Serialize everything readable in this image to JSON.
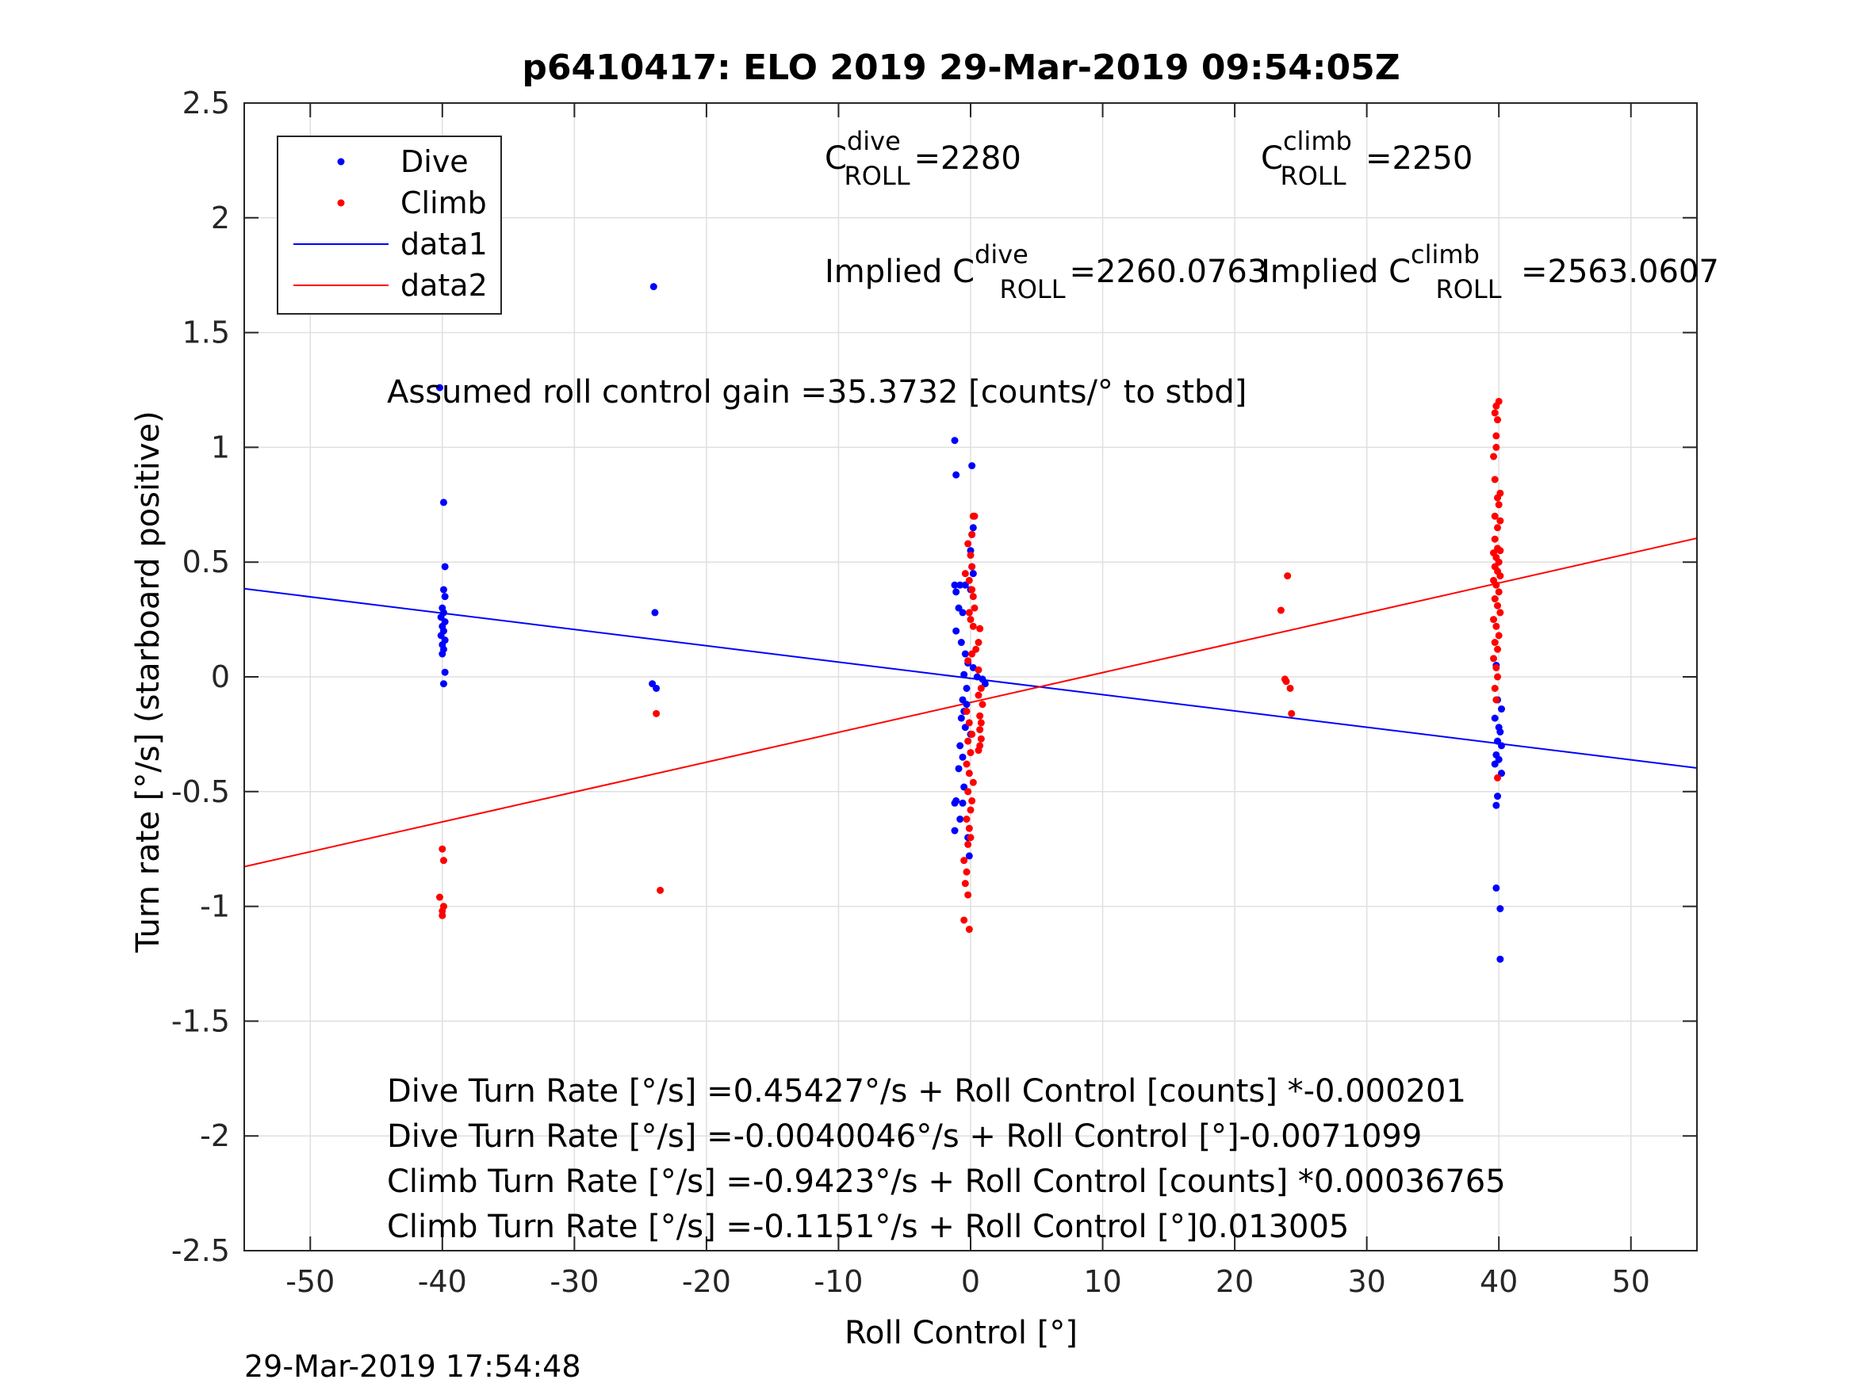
{
  "chart_data": {
    "type": "scatter",
    "title": "p6410417: ELO 2019 29-Mar-2019 09:54:05Z",
    "xlabel": "Roll Control [°]",
    "ylabel": "Turn rate [°/s] (starboard positive)",
    "xlim": [
      -55,
      55
    ],
    "ylim": [
      -2.5,
      2.5
    ],
    "xticks": [
      -50,
      -40,
      -30,
      -20,
      -10,
      0,
      10,
      20,
      30,
      40,
      50
    ],
    "xtick_labels": [
      "-50",
      "-40",
      "-30",
      "-20",
      "-10",
      "0",
      "10",
      "20",
      "30",
      "40",
      "50"
    ],
    "yticks": [
      -2.5,
      -2,
      -1.5,
      -1,
      -0.5,
      0,
      0.5,
      1,
      1.5,
      2,
      2.5
    ],
    "ytick_labels": [
      "-2.5",
      "-2",
      "-1.5",
      "-1",
      "-0.5",
      "0",
      "0.5",
      "1",
      "1.5",
      "2",
      "2.5"
    ],
    "grid": true,
    "legend_position": "top-left",
    "legend": [
      {
        "label": "Dive",
        "kind": "marker",
        "color": "#0000ff"
      },
      {
        "label": "Climb",
        "kind": "marker",
        "color": "#ff0000"
      },
      {
        "label": "data1",
        "kind": "line",
        "color": "#0000ff"
      },
      {
        "label": "data2",
        "kind": "line",
        "color": "#ff0000"
      }
    ],
    "series": [
      {
        "name": "Dive",
        "type": "scatter",
        "color": "#0000ff",
        "points": [
          [
            -39.9,
            0.76
          ],
          [
            -39.8,
            0.48
          ],
          [
            -39.9,
            0.38
          ],
          [
            -39.8,
            0.35
          ],
          [
            -40.0,
            0.3
          ],
          [
            -39.9,
            0.28
          ],
          [
            -40.1,
            0.26
          ],
          [
            -39.8,
            0.24
          ],
          [
            -40.0,
            0.22
          ],
          [
            -39.9,
            0.2
          ],
          [
            -40.1,
            0.18
          ],
          [
            -39.8,
            0.16
          ],
          [
            -40.0,
            0.14
          ],
          [
            -39.9,
            0.12
          ],
          [
            -40.0,
            0.1
          ],
          [
            -39.8,
            0.02
          ],
          [
            -39.9,
            -0.03
          ],
          [
            -40.2,
            1.26
          ],
          [
            -24.0,
            1.7
          ],
          [
            -23.9,
            0.28
          ],
          [
            -24.1,
            -0.03
          ],
          [
            -23.8,
            -0.05
          ],
          [
            -1.2,
            1.03
          ],
          [
            -1.1,
            0.88
          ],
          [
            0.1,
            0.92
          ],
          [
            -0.8,
            0.4
          ],
          [
            -1.2,
            0.4
          ],
          [
            -1.1,
            0.37
          ],
          [
            -0.4,
            0.4
          ],
          [
            0.0,
            0.38
          ],
          [
            -0.9,
            0.3
          ],
          [
            -0.6,
            0.28
          ],
          [
            -1.1,
            0.2
          ],
          [
            -0.7,
            0.15
          ],
          [
            -0.4,
            0.1
          ],
          [
            -0.2,
            0.06
          ],
          [
            0.2,
            0.04
          ],
          [
            -0.5,
            0.01
          ],
          [
            0.5,
            0.0
          ],
          [
            0.9,
            -0.01
          ],
          [
            1.1,
            -0.03
          ],
          [
            0.2,
            0.65
          ],
          [
            0.1,
            0.62
          ],
          [
            0.0,
            0.55
          ],
          [
            0.1,
            0.48
          ],
          [
            0.2,
            0.45
          ],
          [
            -0.3,
            -0.05
          ],
          [
            -0.6,
            -0.1
          ],
          [
            -0.5,
            -0.15
          ],
          [
            -0.7,
            -0.18
          ],
          [
            -0.4,
            -0.22
          ],
          [
            -0.8,
            -0.3
          ],
          [
            -0.6,
            -0.35
          ],
          [
            -0.9,
            -0.4
          ],
          [
            -0.5,
            -0.48
          ],
          [
            -1.1,
            -0.54
          ],
          [
            -1.2,
            -0.55
          ],
          [
            -0.6,
            -0.55
          ],
          [
            -0.8,
            -0.62
          ],
          [
            -1.2,
            -0.67
          ],
          [
            -0.2,
            -0.7
          ],
          [
            -0.1,
            -0.78
          ],
          [
            -0.3,
            -0.12
          ],
          [
            0.0,
            -0.25
          ],
          [
            39.8,
            0.05
          ],
          [
            39.9,
            -0.1
          ],
          [
            40.2,
            -0.14
          ],
          [
            39.7,
            -0.18
          ],
          [
            40.0,
            -0.22
          ],
          [
            40.1,
            -0.24
          ],
          [
            39.9,
            -0.28
          ],
          [
            40.2,
            -0.3
          ],
          [
            39.8,
            -0.34
          ],
          [
            40.0,
            -0.36
          ],
          [
            39.7,
            -0.38
          ],
          [
            40.2,
            -0.42
          ],
          [
            39.9,
            -0.52
          ],
          [
            39.8,
            -0.56
          ],
          [
            39.8,
            -0.92
          ],
          [
            40.1,
            -1.01
          ],
          [
            40.1,
            -1.23
          ]
        ]
      },
      {
        "name": "Climb",
        "type": "scatter",
        "color": "#ff0000",
        "points": [
          [
            -40.0,
            -0.75
          ],
          [
            -39.9,
            -0.8
          ],
          [
            -40.2,
            -0.96
          ],
          [
            -39.9,
            -1.0
          ],
          [
            -40.0,
            -1.02
          ],
          [
            -40.0,
            -1.04
          ],
          [
            -23.8,
            -0.16
          ],
          [
            -23.5,
            -0.93
          ],
          [
            -0.4,
            0.45
          ],
          [
            0.0,
            0.53
          ],
          [
            0.1,
            0.48
          ],
          [
            0.2,
            0.7
          ],
          [
            0.3,
            0.7
          ],
          [
            0.1,
            0.62
          ],
          [
            -0.2,
            0.58
          ],
          [
            -0.1,
            0.42
          ],
          [
            0.1,
            0.38
          ],
          [
            0.2,
            0.35
          ],
          [
            0.3,
            0.3
          ],
          [
            -0.1,
            0.28
          ],
          [
            0.0,
            0.25
          ],
          [
            0.2,
            0.22
          ],
          [
            0.7,
            0.21
          ],
          [
            0.6,
            0.15
          ],
          [
            0.4,
            0.12
          ],
          [
            0.1,
            0.1
          ],
          [
            -0.2,
            0.07
          ],
          [
            0.6,
            0.03
          ],
          [
            0.8,
            -0.05
          ],
          [
            0.6,
            -0.08
          ],
          [
            0.9,
            -0.12
          ],
          [
            0.7,
            -0.17
          ],
          [
            0.8,
            -0.2
          ],
          [
            0.7,
            -0.23
          ],
          [
            0.8,
            -0.27
          ],
          [
            0.7,
            -0.3
          ],
          [
            0.6,
            -0.32
          ],
          [
            -0.3,
            -0.15
          ],
          [
            -0.1,
            -0.2
          ],
          [
            0.1,
            -0.25
          ],
          [
            -0.2,
            -0.28
          ],
          [
            0.0,
            -0.33
          ],
          [
            -0.3,
            -0.38
          ],
          [
            -0.1,
            -0.42
          ],
          [
            0.2,
            -0.46
          ],
          [
            -0.2,
            -0.5
          ],
          [
            0.1,
            -0.54
          ],
          [
            0.0,
            -0.58
          ],
          [
            -0.3,
            -0.62
          ],
          [
            -0.1,
            -0.66
          ],
          [
            0.0,
            -0.7
          ],
          [
            -0.2,
            -0.73
          ],
          [
            -0.5,
            -0.8
          ],
          [
            -0.3,
            -0.85
          ],
          [
            -0.4,
            -0.9
          ],
          [
            -0.2,
            -0.95
          ],
          [
            -0.5,
            -1.06
          ],
          [
            -0.1,
            -1.1
          ],
          [
            23.5,
            0.29
          ],
          [
            24.0,
            0.44
          ],
          [
            23.8,
            -0.01
          ],
          [
            23.9,
            -0.02
          ],
          [
            24.2,
            -0.05
          ],
          [
            24.3,
            -0.16
          ],
          [
            40.0,
            1.2
          ],
          [
            39.8,
            1.18
          ],
          [
            39.7,
            1.15
          ],
          [
            39.9,
            1.12
          ],
          [
            39.8,
            1.05
          ],
          [
            39.6,
            0.96
          ],
          [
            40.1,
            0.8
          ],
          [
            39.9,
            0.78
          ],
          [
            40.0,
            0.75
          ],
          [
            39.7,
            0.7
          ],
          [
            40.1,
            0.68
          ],
          [
            39.9,
            0.65
          ],
          [
            39.7,
            0.6
          ],
          [
            39.9,
            0.56
          ],
          [
            40.1,
            0.55
          ],
          [
            39.6,
            0.54
          ],
          [
            39.8,
            0.52
          ],
          [
            40.0,
            0.5
          ],
          [
            39.7,
            0.48
          ],
          [
            39.9,
            0.46
          ],
          [
            40.1,
            0.44
          ],
          [
            39.6,
            0.42
          ],
          [
            39.8,
            0.4
          ],
          [
            40.0,
            0.37
          ],
          [
            39.7,
            0.34
          ],
          [
            39.9,
            0.31
          ],
          [
            40.1,
            0.28
          ],
          [
            39.6,
            0.25
          ],
          [
            39.8,
            0.22
          ],
          [
            40.0,
            0.18
          ],
          [
            39.7,
            0.15
          ],
          [
            39.9,
            0.12
          ],
          [
            39.6,
            0.08
          ],
          [
            39.8,
            0.04
          ],
          [
            39.9,
            0.0
          ],
          [
            39.7,
            -0.05
          ],
          [
            39.8,
            -0.1
          ],
          [
            39.9,
            -0.44
          ],
          [
            39.7,
            0.86
          ],
          [
            39.8,
            1.0
          ]
        ]
      },
      {
        "name": "data1",
        "type": "line",
        "color": "#0000ff",
        "points": [
          [
            -55,
            0.384
          ],
          [
            55,
            -0.397
          ]
        ]
      },
      {
        "name": "data2",
        "type": "line",
        "color": "#ff0000",
        "points": [
          [
            -55,
            -0.827
          ],
          [
            55,
            0.604
          ]
        ]
      }
    ],
    "annotations": [
      {
        "id": "c-dive",
        "base": "C",
        "sup": "dive",
        "sub": "ROLL",
        "value": "=2280"
      },
      {
        "id": "c-climb",
        "base": "C",
        "sup": "climb",
        "sub": "ROLL",
        "value": "=2250"
      },
      {
        "id": "implied-dive",
        "base": "Implied C",
        "sup": "dive",
        "sub": "ROLL",
        "value": "=2260.0763"
      },
      {
        "id": "implied-climb",
        "base": "Implied C",
        "sup": "climb",
        "sub": "ROLL",
        "value": "=2563.0607"
      },
      {
        "id": "gain",
        "text": "Assumed roll control gain =35.3732 [counts/° to stbd]"
      },
      {
        "id": "eq1",
        "text": "Dive Turn Rate [°/s] =0.45427°/s + Roll Control [counts] *-0.000201"
      },
      {
        "id": "eq2",
        "text": "Dive Turn Rate [°/s] =-0.0040046°/s + Roll Control [°]-0.0071099"
      },
      {
        "id": "eq3",
        "text": "Climb Turn Rate [°/s] =-0.9423°/s + Roll Control [counts] *0.00036765"
      },
      {
        "id": "eq4",
        "text": "Climb Turn Rate [°/s] =-0.1151°/s + Roll Control [°]0.013005"
      }
    ],
    "footer_timestamp": "29-Mar-2019 17:54:48"
  }
}
